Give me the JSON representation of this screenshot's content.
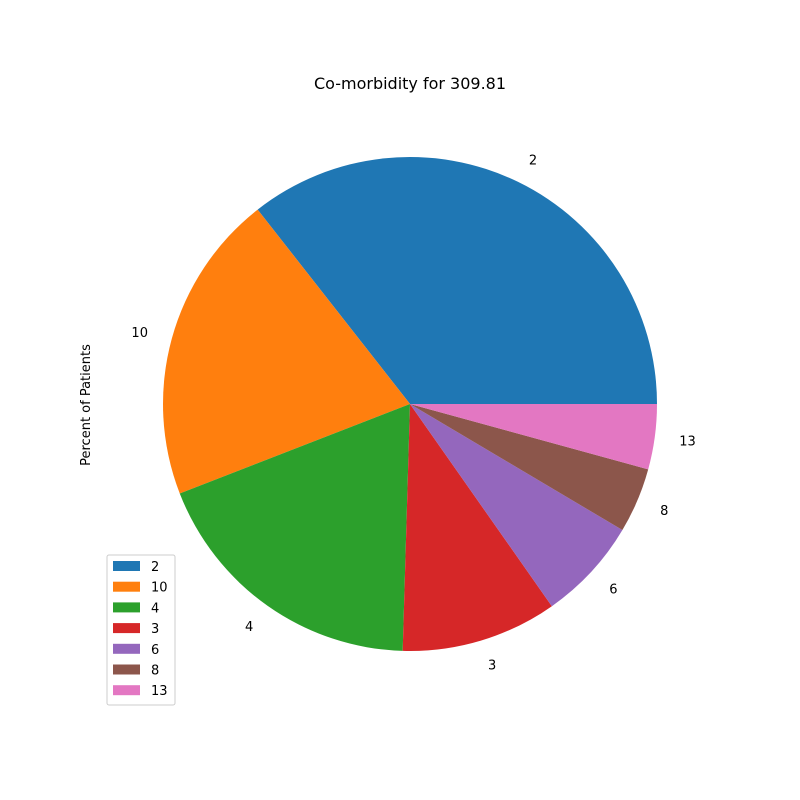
{
  "chart_data": {
    "type": "pie",
    "title": "Co-morbidity for 309.81",
    "ylabel": "Percent of Patients",
    "slices": [
      {
        "label": "2",
        "value": 35.9,
        "color": "#1f77b4"
      },
      {
        "label": "10",
        "value": 20.5,
        "color": "#ff7f0e"
      },
      {
        "label": "4",
        "value": 18.8,
        "color": "#2ca02c"
      },
      {
        "label": "3",
        "value": 10.3,
        "color": "#d62728"
      },
      {
        "label": "6",
        "value": 6.8,
        "color": "#9467bd"
      },
      {
        "label": "8",
        "value": 4.3,
        "color": "#8c564b"
      },
      {
        "label": "13",
        "value": 4.3,
        "color": "#e377c2"
      }
    ],
    "legend": {
      "position": "lower-left"
    },
    "start_angle": "3-o'clock",
    "direction": "counter-clockwise"
  }
}
